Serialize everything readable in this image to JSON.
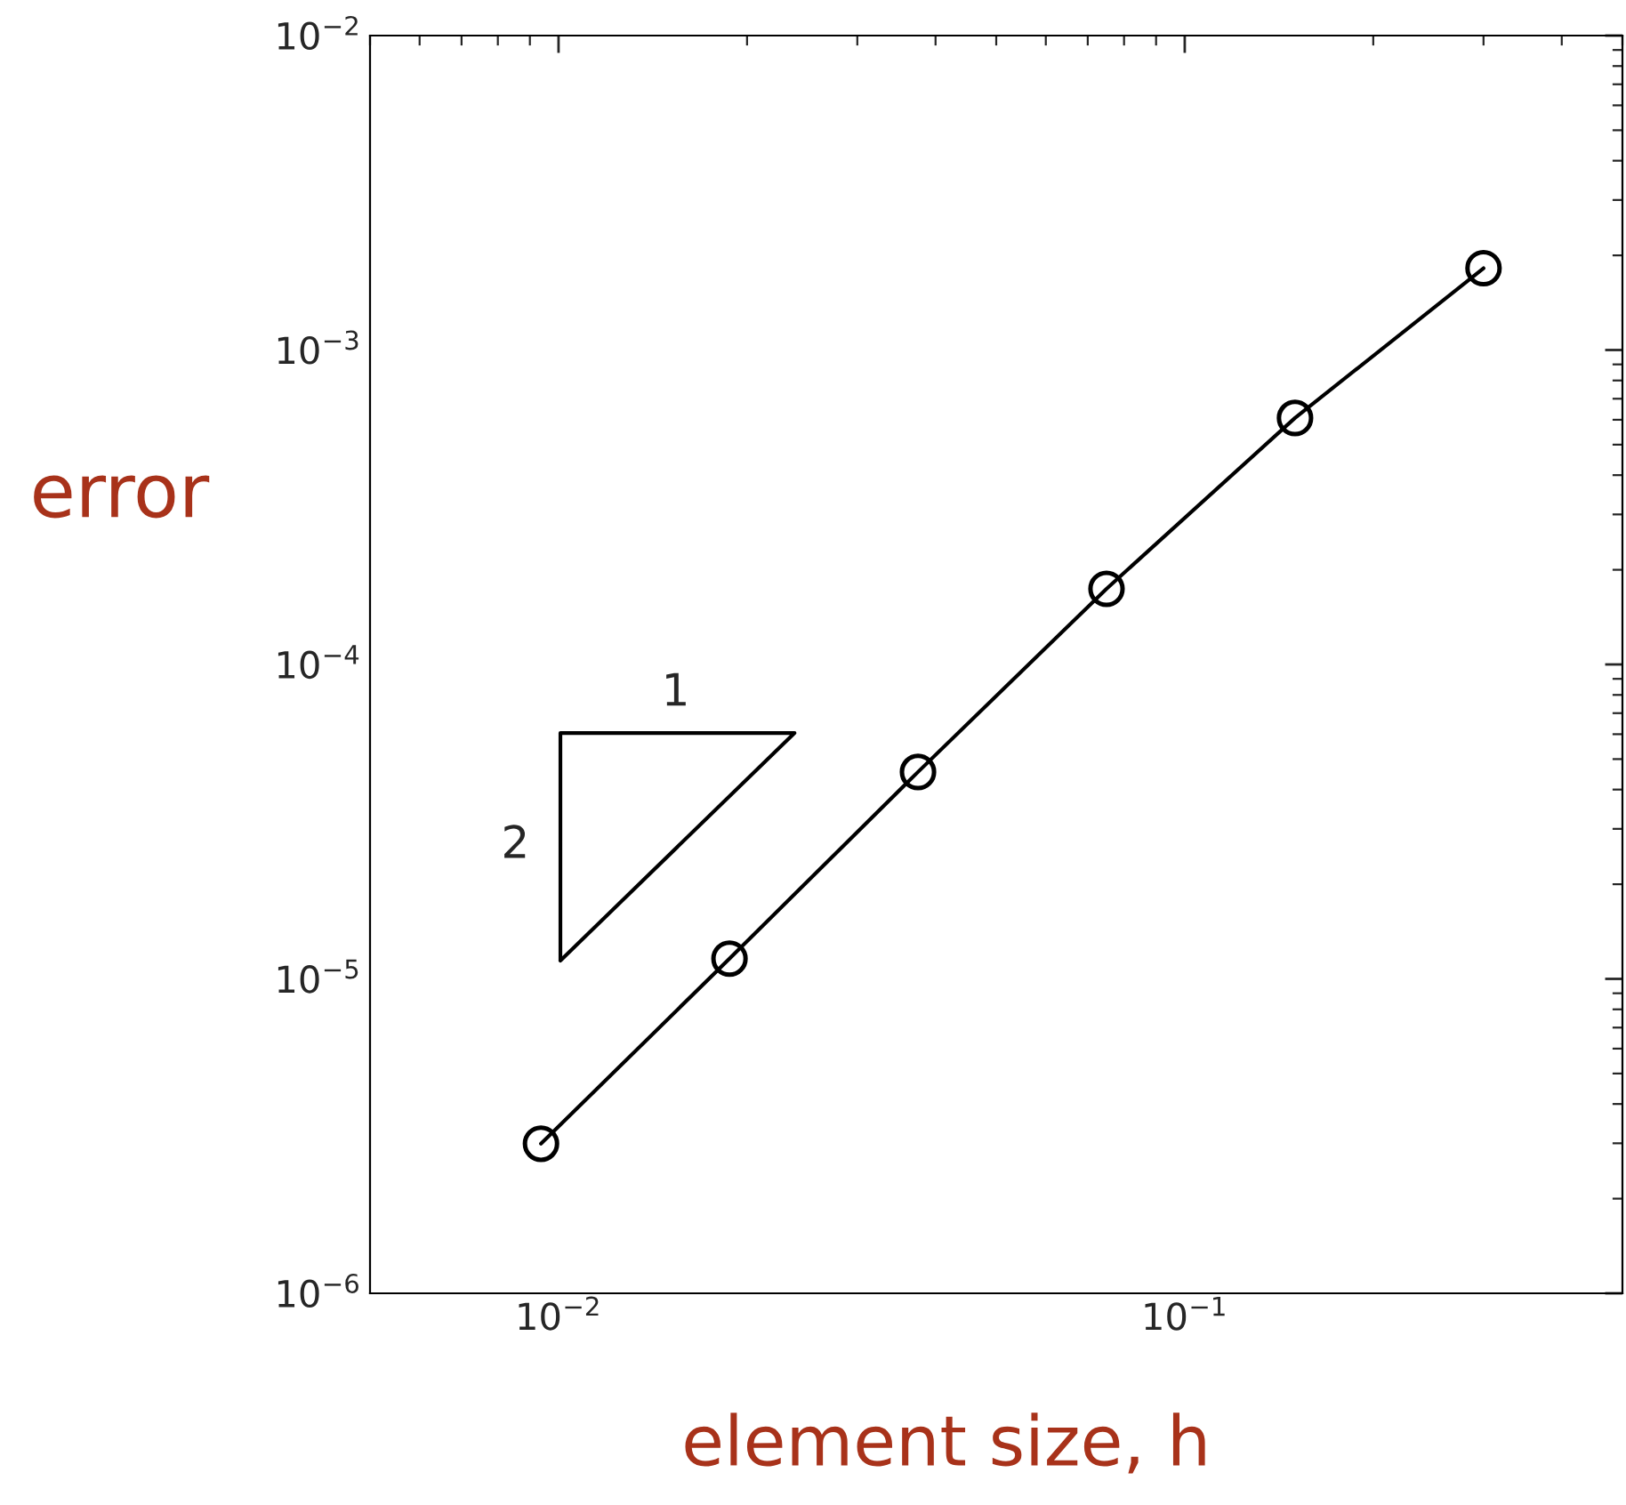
{
  "chart_data": {
    "type": "line",
    "xlabel": "element size, h",
    "ylabel": "error",
    "log": "xy",
    "x": [
      0.009375,
      0.01875,
      0.0375,
      0.075,
      0.15,
      0.3
    ],
    "series": [
      {
        "color": "#000000",
        "values": [
          2.99e-06,
          1.16e-05,
          4.55e-05,
          0.000174,
          0.000608,
          0.00182
        ]
      }
    ],
    "marker": "circle",
    "line_style": "solid",
    "grid": false,
    "legend": false,
    "xlim": [
      0.005,
      0.5
    ],
    "ylim": [
      1e-06,
      0.01
    ],
    "xticks": [
      {
        "value": 0.01,
        "label": "10$^{−2}$"
      },
      {
        "value": 0.1,
        "label": "10$^{−1}$"
      }
    ],
    "yticks": [
      {
        "value": 1e-06,
        "label": "10$^{−6}$"
      },
      {
        "value": 1e-05,
        "label": "10$^{−5}$"
      },
      {
        "value": 0.0001,
        "label": "10$^{−4}$"
      },
      {
        "value": 0.001,
        "label": "10$^{−3}$"
      },
      {
        "value": 0.01,
        "label": "10$^{−2}$"
      }
    ],
    "annotations": [
      "1",
      "2"
    ]
  }
}
